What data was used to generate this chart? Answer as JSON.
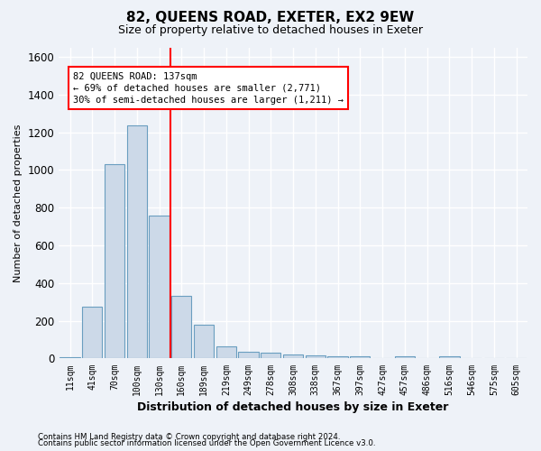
{
  "title": "82, QUEENS ROAD, EXETER, EX2 9EW",
  "subtitle": "Size of property relative to detached houses in Exeter",
  "xlabel": "Distribution of detached houses by size in Exeter",
  "ylabel": "Number of detached properties",
  "categories": [
    "11sqm",
    "41sqm",
    "70sqm",
    "100sqm",
    "130sqm",
    "160sqm",
    "189sqm",
    "219sqm",
    "249sqm",
    "278sqm",
    "308sqm",
    "338sqm",
    "367sqm",
    "397sqm",
    "427sqm",
    "457sqm",
    "486sqm",
    "516sqm",
    "546sqm",
    "575sqm",
    "605sqm"
  ],
  "values": [
    5,
    275,
    1030,
    1235,
    760,
    330,
    180,
    65,
    35,
    30,
    20,
    15,
    10,
    10,
    0,
    10,
    0,
    10,
    0,
    0,
    0
  ],
  "bar_color": "#ccd9e8",
  "bar_edge_color": "#6a9ec0",
  "red_line_x": 4.5,
  "annotation_line1": "82 QUEENS ROAD: 137sqm",
  "annotation_line2": "← 69% of detached houses are smaller (2,771)",
  "annotation_line3": "30% of semi-detached houses are larger (1,211) →",
  "ylim": [
    0,
    1650
  ],
  "yticks": [
    0,
    200,
    400,
    600,
    800,
    1000,
    1200,
    1400,
    1600
  ],
  "footer_line1": "Contains HM Land Registry data © Crown copyright and database right 2024.",
  "footer_line2": "Contains public sector information licensed under the Open Government Licence v3.0.",
  "background_color": "#eef2f8",
  "grid_color": "#ffffff",
  "title_fontsize": 11,
  "subtitle_fontsize": 9,
  "bar_width": 0.9
}
